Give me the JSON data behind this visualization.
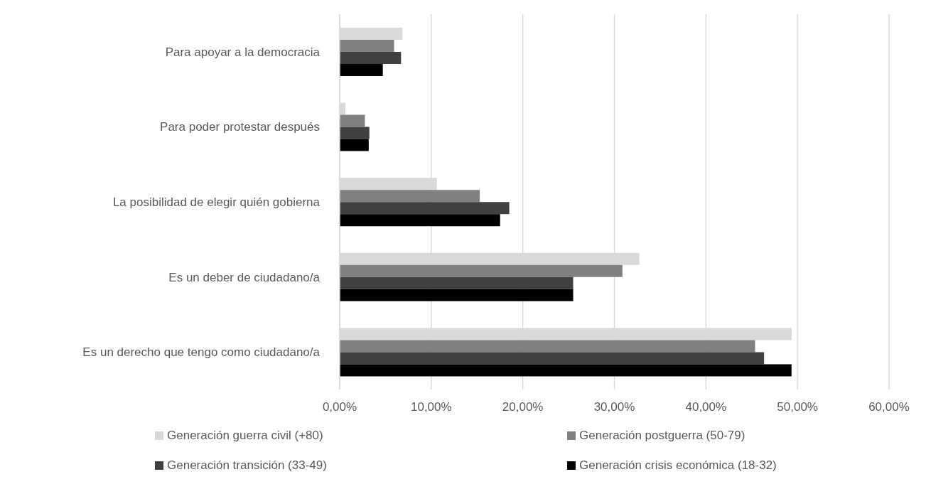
{
  "chart_data": {
    "type": "bar",
    "orientation": "horizontal",
    "categories": [
      "Para apoyar a la democracia",
      "Para poder protestar después",
      "La posibilidad de elegir quién gobierna",
      "Es un deber de ciudadano/a",
      "Es un derecho que tengo como ciudadano/a"
    ],
    "series": [
      {
        "name": "Generación guerra civil (+80)",
        "color": "#d9d9d9",
        "values": [
          6.86,
          0.62,
          10.61,
          32.73,
          49.36
        ]
      },
      {
        "name": "Generación postguerra (50-79)",
        "color": "#808080",
        "values": [
          5.94,
          2.75,
          15.3,
          30.88,
          45.37
        ]
      },
      {
        "name": "Generación transición (33-49)",
        "color": "#404040",
        "values": [
          6.7,
          3.24,
          18.52,
          25.5,
          46.35
        ]
      },
      {
        "name": "Generación crisis económica (18-32)",
        "color": "#000000",
        "values": [
          4.71,
          3.17,
          17.52,
          25.5,
          49.35
        ]
      }
    ],
    "xlim": [
      0,
      60
    ],
    "xticks": [
      {
        "value": 0,
        "label": "0,00%"
      },
      {
        "value": 10,
        "label": "10,00%"
      },
      {
        "value": 20,
        "label": "20,00%"
      },
      {
        "value": 30,
        "label": "30,00%"
      },
      {
        "value": 40,
        "label": "40,00%"
      },
      {
        "value": 50,
        "label": "50,00%"
      },
      {
        "value": 60,
        "label": "60,00%"
      }
    ],
    "grid": "x",
    "legend": "bottom"
  }
}
